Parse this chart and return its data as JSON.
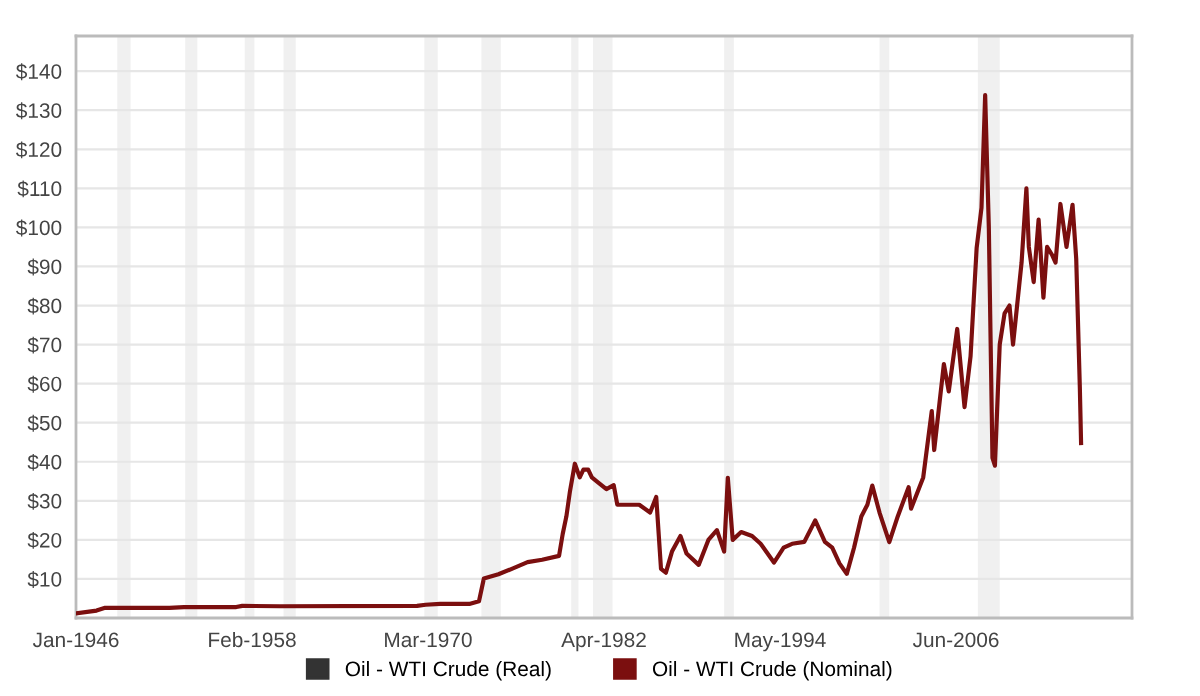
{
  "chart_data": {
    "type": "line",
    "x": [
      "1946-01",
      "1947-06",
      "1948-01",
      "1952-06",
      "1953-06",
      "1957-01",
      "1957-06",
      "1960-01",
      "1969-06",
      "1970-01",
      "1971-01",
      "1973-01",
      "1973-09",
      "1974-01",
      "1975-01",
      "1976-01",
      "1977-01",
      "1978-01",
      "1979-03",
      "1979-06",
      "1979-09",
      "1979-12",
      "1980-04",
      "1980-08",
      "1980-11",
      "1981-03",
      "1981-06",
      "1981-10",
      "1982-06",
      "1982-12",
      "1983-03",
      "1983-12",
      "1984-09",
      "1985-06",
      "1985-11",
      "1986-03",
      "1986-07",
      "1986-12",
      "1987-07",
      "1987-12",
      "1988-10",
      "1989-06",
      "1990-01",
      "1990-07",
      "1990-10",
      "1991-02",
      "1991-09",
      "1992-06",
      "1993-01",
      "1993-12",
      "1994-08",
      "1995-03",
      "1996-01",
      "1996-10",
      "1997-06",
      "1997-12",
      "1998-06",
      "1998-12",
      "1999-06",
      "1999-12",
      "2000-05",
      "2000-09",
      "2001-03",
      "2001-11",
      "2002-06",
      "2003-03",
      "2003-05",
      "2004-03",
      "2004-10",
      "2004-12",
      "2005-08",
      "2005-12",
      "2006-07",
      "2007-01",
      "2007-06",
      "2007-11",
      "2008-03",
      "2008-06",
      "2008-09",
      "2008-12",
      "2009-02",
      "2009-06",
      "2009-10",
      "2010-02",
      "2010-05",
      "2010-12",
      "2011-04",
      "2011-06",
      "2011-10",
      "2012-02",
      "2012-06",
      "2012-09",
      "2013-01",
      "2013-04",
      "2013-08",
      "2014-01",
      "2014-06",
      "2014-09",
      "2014-12",
      "2015-01"
    ],
    "series": [
      {
        "name": "Oil - WTI Crude (Real)",
        "color": "#333333",
        "values": [
          null,
          null,
          null,
          null,
          null,
          null,
          null,
          null,
          null,
          null,
          null,
          null,
          null,
          null,
          null,
          null,
          null,
          null,
          null,
          null,
          null,
          null,
          null,
          null,
          null,
          null,
          null,
          null,
          null,
          null,
          null,
          null,
          null,
          null,
          null,
          null,
          null,
          null,
          null,
          null,
          null,
          null,
          null,
          null,
          null,
          null,
          null,
          null,
          null,
          null,
          null,
          null,
          null,
          null,
          null,
          null,
          null,
          null,
          null,
          null,
          null,
          null,
          null,
          null,
          null,
          null,
          null,
          null,
          null,
          null,
          null,
          null,
          null,
          null,
          null,
          null,
          null,
          null,
          null,
          null,
          null,
          null,
          null,
          null,
          null,
          null,
          null,
          null,
          null,
          null,
          null,
          null,
          null,
          null,
          null,
          null,
          null,
          null,
          null,
          null
        ]
      },
      {
        "name": "Oil - WTI Crude (Nominal)",
        "color": "#7b0f0f",
        "values": [
          1.2,
          1.9,
          2.6,
          2.6,
          2.8,
          2.8,
          3.1,
          3.0,
          3.1,
          3.4,
          3.6,
          3.6,
          4.3,
          10.1,
          11.2,
          12.7,
          14.3,
          14.9,
          15.9,
          21.5,
          26,
          32.5,
          39.5,
          36,
          38,
          38,
          36,
          35,
          33,
          34,
          29,
          29,
          29,
          27,
          31,
          12.6,
          11.6,
          17,
          21,
          16.5,
          13.6,
          20,
          22.5,
          17,
          35.9,
          20,
          22,
          21,
          19,
          14.2,
          18,
          19,
          19.5,
          25,
          19.5,
          18,
          14,
          11.3,
          18,
          26,
          29,
          33.9,
          27,
          19.4,
          26,
          33.5,
          28,
          36,
          53,
          43,
          65,
          58,
          74,
          54,
          67,
          94.8,
          105,
          133.9,
          100,
          41,
          39,
          70,
          78,
          80,
          70,
          91,
          110,
          95,
          86,
          102,
          82,
          95,
          93,
          91,
          106,
          95,
          105.8,
          92,
          59,
          44.8
        ]
      }
    ],
    "xlim": [
      "1946-01",
      "2018-07"
    ],
    "xticks": [
      {
        "value": "1946-01",
        "label": "Jan-1946"
      },
      {
        "value": "1958-02",
        "label": "Feb-1958"
      },
      {
        "value": "1970-03",
        "label": "Mar-1970"
      },
      {
        "value": "1982-04",
        "label": "Apr-1982"
      },
      {
        "value": "1994-05",
        "label": "May-1994"
      },
      {
        "value": "2006-06",
        "label": "Jun-2006"
      }
    ],
    "ylim": [
      0,
      149
    ],
    "yticks": [
      {
        "value": 10,
        "label": "$10"
      },
      {
        "value": 20,
        "label": "$20"
      },
      {
        "value": 30,
        "label": "$30"
      },
      {
        "value": 40,
        "label": "$40"
      },
      {
        "value": 50,
        "label": "$50"
      },
      {
        "value": 60,
        "label": "$60"
      },
      {
        "value": 70,
        "label": "$70"
      },
      {
        "value": 80,
        "label": "$80"
      },
      {
        "value": 90,
        "label": "$90"
      },
      {
        "value": 100,
        "label": "$100"
      },
      {
        "value": 110,
        "label": "$110"
      },
      {
        "value": 120,
        "label": "$120"
      },
      {
        "value": 130,
        "label": "$130"
      },
      {
        "value": 140,
        "label": "$140"
      }
    ],
    "bands": [
      {
        "axis": "x",
        "from": "1948-11",
        "to": "1949-10",
        "color": "#f0f0f0"
      },
      {
        "axis": "x",
        "from": "1953-07",
        "to": "1954-05",
        "color": "#f0f0f0"
      },
      {
        "axis": "x",
        "from": "1957-08",
        "to": "1958-04",
        "color": "#f0f0f0"
      },
      {
        "axis": "x",
        "from": "1960-04",
        "to": "1961-02",
        "color": "#f0f0f0"
      },
      {
        "axis": "x",
        "from": "1969-12",
        "to": "1970-11",
        "color": "#f0f0f0"
      },
      {
        "axis": "x",
        "from": "1973-11",
        "to": "1975-03",
        "color": "#f0f0f0"
      },
      {
        "axis": "x",
        "from": "1980-01",
        "to": "1980-07",
        "color": "#f0f0f0"
      },
      {
        "axis": "x",
        "from": "1981-07",
        "to": "1982-11",
        "color": "#f0f0f0"
      },
      {
        "axis": "x",
        "from": "1990-07",
        "to": "1991-03",
        "color": "#f0f0f0"
      },
      {
        "axis": "x",
        "from": "2001-03",
        "to": "2001-11",
        "color": "#f0f0f0"
      },
      {
        "axis": "x",
        "from": "2007-12",
        "to": "2009-06",
        "color": "#f0f0f0"
      }
    ],
    "grid": "y",
    "legend": "bottom",
    "marker": "none",
    "line_style": "solid"
  }
}
